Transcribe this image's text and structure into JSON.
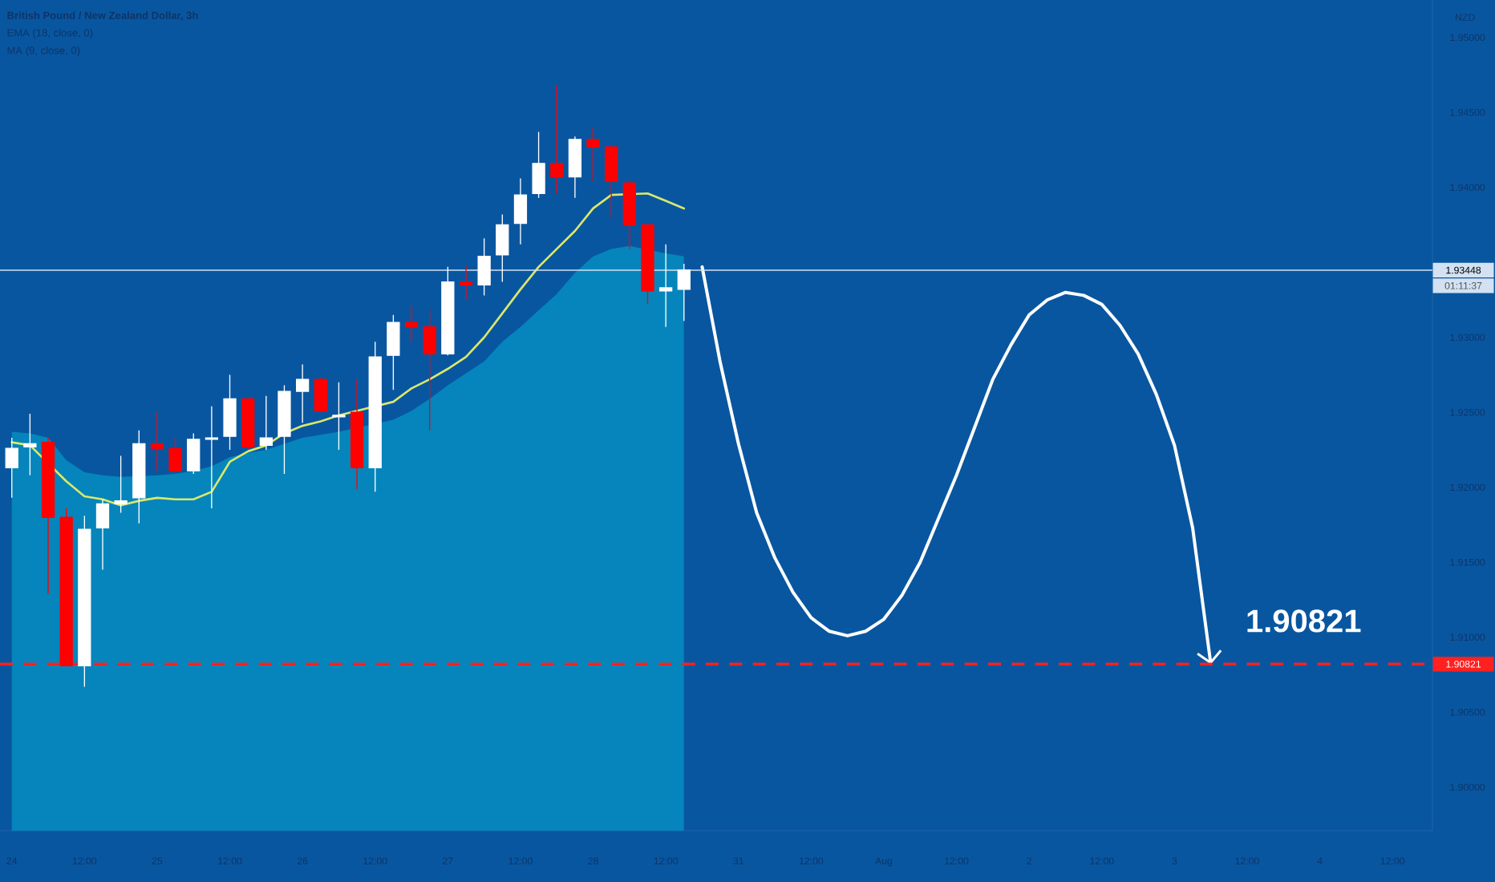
{
  "chart_data": {
    "type": "candlestick",
    "title": "British Pound / New Zealand Dollar, 3h",
    "ylabel": "NZD",
    "categories": [
      "24",
      null,
      null,
      null,
      "12:00",
      null,
      null,
      null,
      "25",
      null,
      null,
      null,
      "12:00",
      null,
      null,
      null,
      "26",
      null,
      null,
      null,
      "12:00",
      null,
      null,
      null,
      "27",
      null,
      null,
      null,
      "12:00",
      null,
      null,
      null,
      "28",
      null,
      null,
      null,
      "12:00",
      null,
      null,
      null,
      "31",
      null,
      null,
      null,
      "12:00",
      null,
      null,
      null,
      "Aug",
      null,
      null,
      null,
      "12:00",
      null,
      null,
      null,
      "2",
      null,
      null,
      null,
      "12:00",
      null,
      null,
      null,
      "3",
      null,
      null,
      null,
      "12:00",
      null,
      null,
      null,
      "4",
      null,
      null,
      null,
      "12:00",
      null,
      null
    ],
    "ohlc": [
      [
        1.9213,
        1.9233,
        1.9193,
        1.9226
      ],
      [
        1.9227,
        1.9249,
        1.9208,
        1.9229
      ],
      [
        1.923,
        1.9233,
        1.9129,
        1.918
      ],
      [
        1.918,
        1.9186,
        1.9081,
        1.9081
      ],
      [
        1.9081,
        1.9181,
        1.9067,
        1.9172
      ],
      [
        1.9173,
        1.9192,
        1.9145,
        1.9189
      ],
      [
        1.9189,
        1.9221,
        1.9183,
        1.9191
      ],
      [
        1.9193,
        1.9238,
        1.9176,
        1.9229
      ],
      [
        1.9229,
        1.925,
        1.9211,
        1.9226
      ],
      [
        1.9226,
        1.9233,
        1.9209,
        1.9211
      ],
      [
        1.9211,
        1.9236,
        1.9209,
        1.9232
      ],
      [
        1.9232,
        1.9254,
        1.9186,
        1.9233
      ],
      [
        1.9234,
        1.9275,
        1.9225,
        1.9259
      ],
      [
        1.9259,
        1.9259,
        1.9225,
        1.9227
      ],
      [
        1.9228,
        1.9261,
        1.9225,
        1.9233
      ],
      [
        1.9234,
        1.9268,
        1.9209,
        1.9264
      ],
      [
        1.9264,
        1.9282,
        1.9243,
        1.9272
      ],
      [
        1.9272,
        1.9273,
        1.925,
        1.9251
      ],
      [
        1.9247,
        1.927,
        1.9225,
        1.9248
      ],
      [
        1.925,
        1.9272,
        1.9199,
        1.9213
      ],
      [
        1.9213,
        1.9297,
        1.9197,
        1.9287
      ],
      [
        1.9288,
        1.9315,
        1.9265,
        1.931
      ],
      [
        1.931,
        1.9321,
        1.9297,
        1.9307
      ],
      [
        1.9307,
        1.9318,
        1.9238,
        1.9289
      ],
      [
        1.9289,
        1.9347,
        1.9288,
        1.9337
      ],
      [
        1.9337,
        1.9348,
        1.9325,
        1.9335
      ],
      [
        1.9335,
        1.9366,
        1.9328,
        1.9354
      ],
      [
        1.9355,
        1.9382,
        1.9337,
        1.9375
      ],
      [
        1.9376,
        1.9406,
        1.9362,
        1.9395
      ],
      [
        1.9396,
        1.9437,
        1.9393,
        1.9416
      ],
      [
        1.9416,
        1.9468,
        1.9396,
        1.9407
      ],
      [
        1.9407,
        1.9434,
        1.9393,
        1.9432
      ],
      [
        1.9432,
        1.944,
        1.9404,
        1.9427
      ],
      [
        1.9427,
        1.9428,
        1.938,
        1.9404
      ],
      [
        1.9403,
        1.9405,
        1.9359,
        1.9375
      ],
      [
        1.9375,
        1.9375,
        1.9322,
        1.9331
      ],
      [
        1.9331,
        1.9362,
        1.9307,
        1.9333
      ],
      [
        1.9332,
        1.9349,
        1.9311,
        1.9345
      ],
      null,
      null,
      null,
      null,
      null,
      null,
      null,
      null,
      null,
      null,
      null,
      null,
      null,
      null,
      null,
      null,
      null,
      null,
      null,
      null,
      null,
      null,
      null,
      null,
      null,
      null,
      null,
      null,
      null,
      null,
      null,
      null,
      null,
      null,
      null,
      null,
      null,
      null,
      null,
      null,
      null
    ],
    "colors": [
      "#ffffff",
      "#ffffff",
      "#ff0000",
      "#ff0000",
      "#ffffff",
      "#ffffff",
      "#ffffff",
      "#ffffff",
      "#ff0000",
      "#ff0000",
      "#ffffff",
      "#ffffff",
      "#ffffff",
      "#ff0000",
      "#ffffff",
      "#ffffff",
      "#ffffff",
      "#ff0000",
      "#ffffff",
      "#ff0000",
      "#ffffff",
      "#ffffff",
      "#ff0000",
      "#ff0000",
      "#ffffff",
      "#ff0000",
      "#ffffff",
      "#ffffff",
      "#ffffff",
      "#ffffff",
      "#ff0000",
      "#ffffff",
      "#ff0000",
      "#ff0000",
      "#ff0000",
      "#ff0000",
      "#ffffff",
      "#ffffff",
      null,
      null,
      null,
      null,
      null,
      null,
      null,
      null,
      null,
      null,
      null,
      null,
      null,
      null,
      null,
      null,
      null,
      null,
      null,
      null,
      null,
      null,
      null,
      null,
      null,
      null,
      null,
      null,
      null,
      null,
      null,
      null,
      null,
      null,
      null,
      null,
      null,
      null,
      null,
      null,
      null
    ],
    "series": [
      {
        "type": "area",
        "color": "#0585bb",
        "values": [
          1.9237,
          1.9236,
          1.9233,
          1.9218,
          1.921,
          1.9208,
          1.9207,
          null,
          1.9208,
          1.9209,
          1.9211,
          1.9214,
          1.922,
          1.9223,
          1.9225,
          1.9229,
          1.9233,
          1.9235,
          1.9237,
          null,
          null,
          1.9245,
          1.9251,
          1.9259,
          1.9268,
          1.9276,
          1.9284,
          1.9297,
          1.9307,
          1.9318,
          1.9329,
          1.9343,
          1.9354,
          1.9359,
          1.9361,
          null,
          1.9356,
          1.9354,
          null,
          null,
          null,
          null,
          null,
          null,
          null,
          null,
          null,
          null,
          null,
          null,
          null,
          null,
          null,
          null,
          null,
          null,
          null,
          null,
          null,
          null,
          null,
          null,
          null,
          null,
          null,
          null,
          null,
          null,
          null,
          null,
          null,
          null,
          null,
          null,
          null,
          null,
          null,
          null,
          null
        ]
      },
      {
        "type": "line",
        "color": "#d8e86c",
        "values": [
          1.923,
          1.9228,
          null,
          1.9204,
          1.9194,
          1.9192,
          1.9188,
          1.9191,
          1.9193,
          1.9192,
          1.9192,
          1.9197,
          1.9217,
          1.9224,
          1.9228,
          1.9236,
          1.9241,
          1.9244,
          1.9248,
          null,
          null,
          1.9257,
          1.9266,
          1.9272,
          1.9279,
          1.9287,
          1.93,
          1.9316,
          1.9332,
          1.9347,
          1.9359,
          1.9371,
          1.9386,
          1.9395,
          null,
          1.9396,
          1.9391,
          1.9386,
          null,
          null,
          null,
          null,
          null,
          null,
          null,
          null,
          null,
          null,
          null,
          null,
          null,
          null,
          null,
          null,
          null,
          null,
          null,
          null,
          null,
          null,
          null,
          null,
          null,
          null,
          null,
          null,
          null,
          null,
          null,
          null,
          null,
          null,
          null,
          null,
          null,
          null,
          null,
          null,
          null
        ]
      },
      {
        "type": "line",
        "color": "#ffffff",
        "values": [
          null,
          null,
          null,
          null,
          null,
          null,
          null,
          null,
          null,
          null,
          null,
          null,
          null,
          null,
          null,
          null,
          null,
          null,
          null,
          null,
          null,
          null,
          null,
          null,
          null,
          null,
          null,
          null,
          null,
          null,
          null,
          null,
          null,
          null,
          null,
          null,
          null,
          null,
          1.9347,
          1.9283,
          1.9229,
          1.9183,
          1.9153,
          1.913,
          1.9113,
          1.9104,
          1.9101,
          1.9104,
          1.9112,
          1.9128,
          1.915,
          1.9179,
          1.9208,
          1.924,
          1.9272,
          1.9295,
          1.9315,
          1.9325,
          1.933,
          1.9328,
          1.9322,
          1.9308,
          1.9289,
          1.9262,
          1.9228,
          1.9173,
          1.9082,
          null,
          null,
          null,
          null,
          null,
          null,
          null,
          null,
          null,
          null,
          null,
          null
        ]
      }
    ],
    "ylim": [
      1.8971,
      1.9525
    ],
    "yticks": [
      {
        "value": 1.9,
        "label": "1.90000"
      },
      {
        "value": 1.905,
        "label": "1.90500"
      },
      {
        "value": 1.91,
        "label": "1.91000"
      },
      {
        "value": 1.915,
        "label": "1.91500"
      },
      {
        "value": 1.92,
        "label": "1.92000"
      },
      {
        "value": 1.925,
        "label": "1.92500"
      },
      {
        "value": 1.93,
        "label": "1.93000"
      },
      {
        "value": 1.94,
        "label": "1.94000"
      },
      {
        "value": 1.945,
        "label": "1.94500"
      },
      {
        "value": 1.95,
        "label": "1.95000"
      }
    ],
    "ref_lines": [
      {
        "axis": "y",
        "value": 1.93448,
        "label": "1.93448",
        "color": "#d2e2f2",
        "line_style": "solid"
      },
      {
        "axis": "y",
        "value": 1.90821,
        "label": "1.90821",
        "color": "#ff2020",
        "line_style": "dashed"
      }
    ],
    "annotations": [
      "EMA (18, close, 0)",
      "MA (9, close, 0)",
      "01:11:37",
      {
        "text": "1.90821",
        "y": 1.90821
      }
    ]
  }
}
